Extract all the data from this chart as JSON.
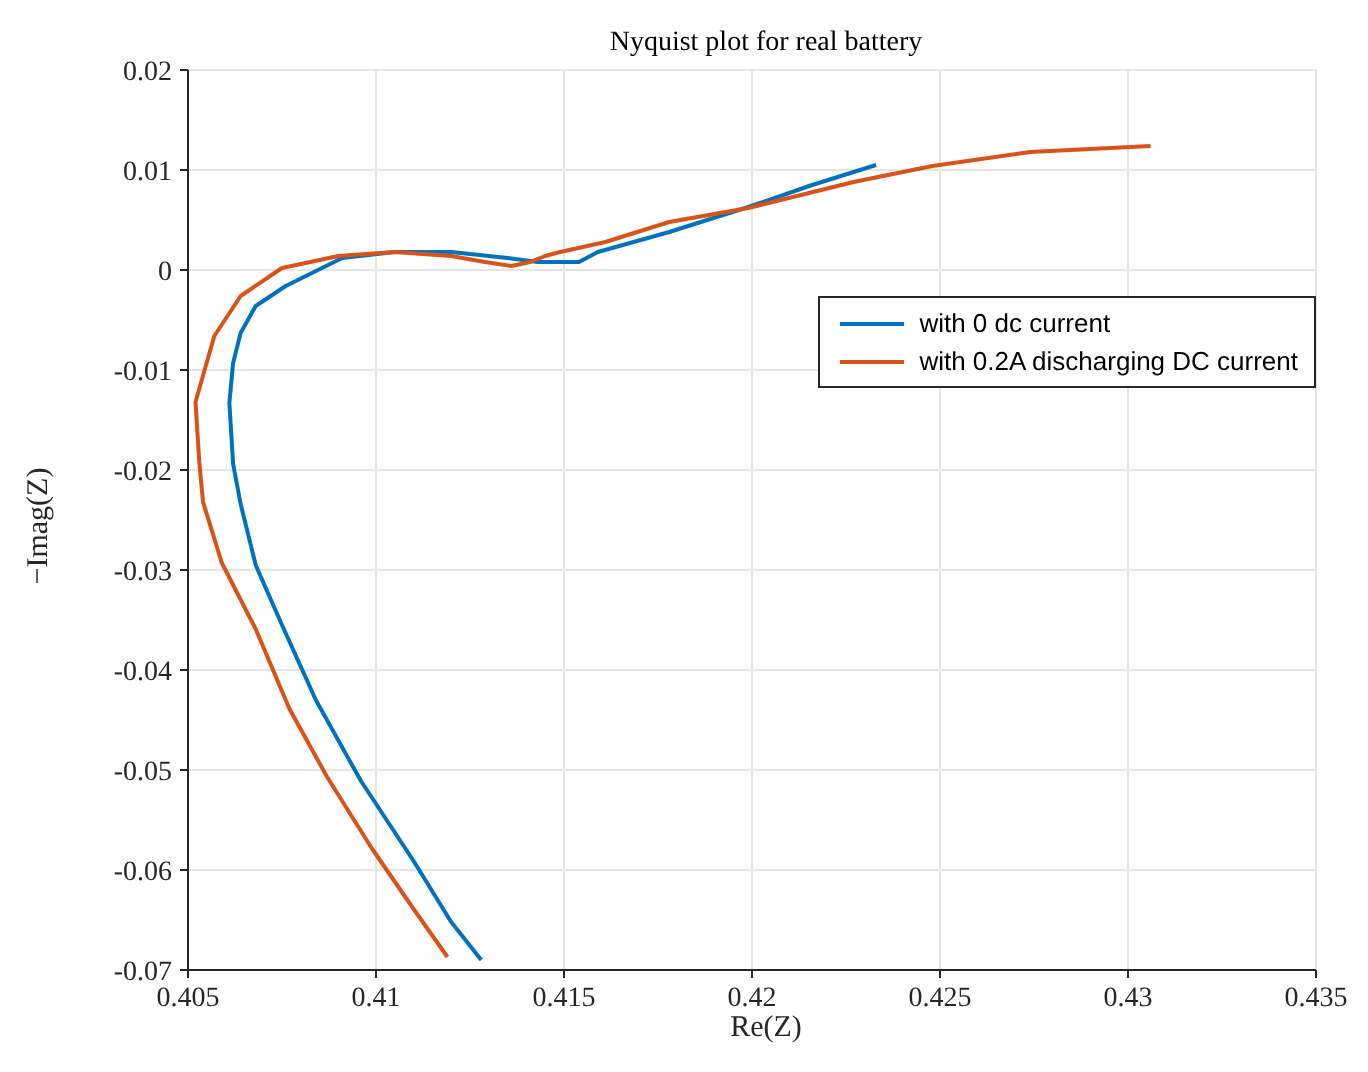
{
  "chart_data": {
    "type": "line",
    "title": "Nyquist plot for real battery",
    "xlabel": "Re(Z)",
    "ylabel": "−Imag(Z)",
    "xlim": [
      0.405,
      0.435
    ],
    "xticks": [
      0.405,
      0.41,
      0.415,
      0.42,
      0.425,
      0.43,
      0.435
    ],
    "ylim": [
      -0.07,
      0.02
    ],
    "yticks": [
      -0.07,
      -0.06,
      -0.05,
      -0.04,
      -0.03,
      -0.02,
      -0.01,
      0,
      0.01,
      0.02
    ],
    "grid": true,
    "legend": "top right",
    "marker": "none",
    "line_style": "solid",
    "series": [
      {
        "name": "with 0 dc current",
        "color": "#0072bd",
        "x": [
          0.4128,
          0.412,
          0.411,
          0.4096,
          0.4084,
          0.4075,
          0.4068,
          0.4064,
          0.4062,
          0.4061,
          0.4062,
          0.4064,
          0.4068,
          0.4076,
          0.4091,
          0.4105,
          0.412,
          0.4135,
          0.4143,
          0.4154,
          0.4159,
          0.4178,
          0.4199,
          0.4216,
          0.4233
        ],
        "values": [
          -0.069,
          -0.0652,
          -0.0591,
          -0.0511,
          -0.043,
          -0.0355,
          -0.0295,
          -0.0234,
          -0.0194,
          -0.0133,
          -0.0093,
          -0.0063,
          -0.0036,
          -0.0016,
          0.0012,
          0.0018,
          0.0018,
          0.0012,
          0.0008,
          0.0008,
          0.0018,
          0.0038,
          0.0063,
          0.0085,
          0.0105
        ]
      },
      {
        "name": "with 0.2A discharging DC current",
        "color": "#d95319",
        "x": [
          0.4119,
          0.411,
          0.4099,
          0.4087,
          0.4077,
          0.4068,
          0.4059,
          0.4054,
          0.4053,
          0.4052,
          0.4057,
          0.4064,
          0.4075,
          0.409,
          0.4105,
          0.412,
          0.4129,
          0.4136,
          0.4141,
          0.4145,
          0.4149,
          0.4161,
          0.4178,
          0.4199,
          0.4227,
          0.4248,
          0.4274,
          0.4306
        ],
        "values": [
          -0.0687,
          -0.0639,
          -0.0579,
          -0.0507,
          -0.0439,
          -0.0359,
          -0.0293,
          -0.0232,
          -0.0192,
          -0.0132,
          -0.0066,
          -0.0026,
          0.0002,
          0.0014,
          0.0018,
          0.0014,
          0.0008,
          0.0004,
          0.0008,
          0.0014,
          0.0018,
          0.0028,
          0.0048,
          0.0062,
          0.0088,
          0.0104,
          0.0118,
          0.0124
        ]
      }
    ]
  }
}
